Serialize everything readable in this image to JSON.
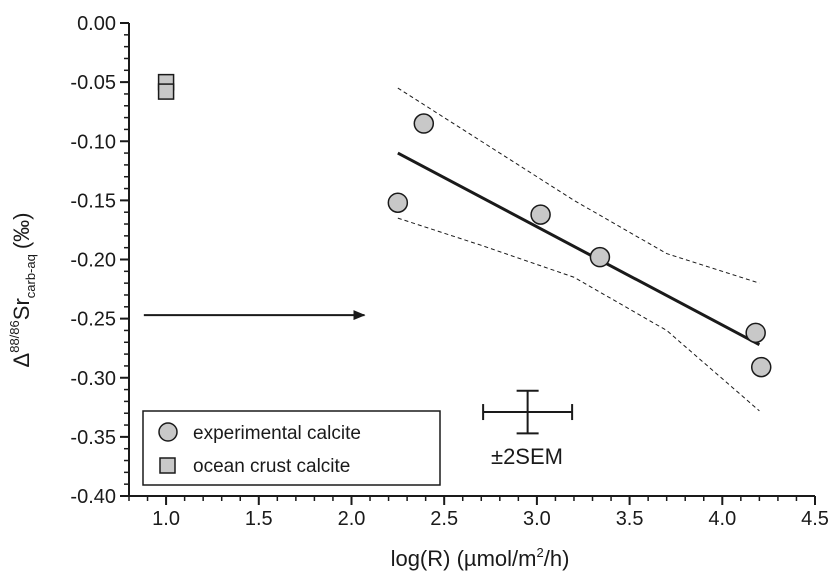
{
  "chart_data": {
    "type": "scatter",
    "title": "",
    "xlabel": {
      "main": "log(R) (µmol/m",
      "sup": "2",
      "tail": "/h)"
    },
    "ylabel": {
      "delta": "Δ",
      "sup": "88/86",
      "base": "Sr",
      "sub": "carb-aq",
      "unit": "(‰)"
    },
    "xlim": [
      0.8,
      4.5
    ],
    "ylim": [
      -0.4,
      0.0
    ],
    "xticks": [
      1.0,
      1.5,
      2.0,
      2.5,
      3.0,
      3.5,
      4.0,
      4.5
    ],
    "xtick_labels": [
      "1.0",
      "1.5",
      "2.0",
      "2.5",
      "3.0",
      "3.5",
      "4.0",
      "4.5"
    ],
    "yticks": [
      0.0,
      -0.05,
      -0.1,
      -0.15,
      -0.2,
      -0.25,
      -0.3,
      -0.35,
      -0.4
    ],
    "ytick_labels": [
      "0.00",
      "-0.05",
      "-0.10",
      "-0.15",
      "-0.20",
      "-0.25",
      "-0.30",
      "-0.35",
      "-0.40"
    ],
    "grid": false,
    "legend_position": "bottom-left",
    "series": [
      {
        "name": "experimental calcite",
        "marker": "circle",
        "color": "#c8c8c8",
        "points": [
          {
            "x": 2.25,
            "y": -0.152
          },
          {
            "x": 2.39,
            "y": -0.085
          },
          {
            "x": 3.02,
            "y": -0.162
          },
          {
            "x": 3.34,
            "y": -0.198
          },
          {
            "x": 4.18,
            "y": -0.262
          },
          {
            "x": 4.21,
            "y": -0.291
          }
        ]
      },
      {
        "name": "ocean crust calcite",
        "marker": "square",
        "color": "#c8c8c8",
        "points": [
          {
            "x": 1.0,
            "y": -0.05
          },
          {
            "x": 1.0,
            "y": -0.058
          }
        ]
      }
    ],
    "regression": {
      "x": [
        2.25,
        4.2
      ],
      "y": [
        -0.11,
        -0.272
      ],
      "upper_band": {
        "x": [
          2.25,
          2.7,
          3.2,
          3.7,
          4.2
        ],
        "y": [
          -0.055,
          -0.1,
          -0.15,
          -0.195,
          -0.22
        ]
      },
      "lower_band": {
        "x": [
          2.25,
          2.7,
          3.2,
          3.7,
          4.2
        ],
        "y": [
          -0.165,
          -0.188,
          -0.215,
          -0.26,
          -0.328
        ]
      }
    },
    "arrow": {
      "x_start": 0.88,
      "x_end": 2.07,
      "y": -0.247
    },
    "error_bar": {
      "x": 2.95,
      "y": -0.329,
      "x_half": 0.24,
      "y_half": 0.018,
      "label": "±2SEM"
    }
  }
}
